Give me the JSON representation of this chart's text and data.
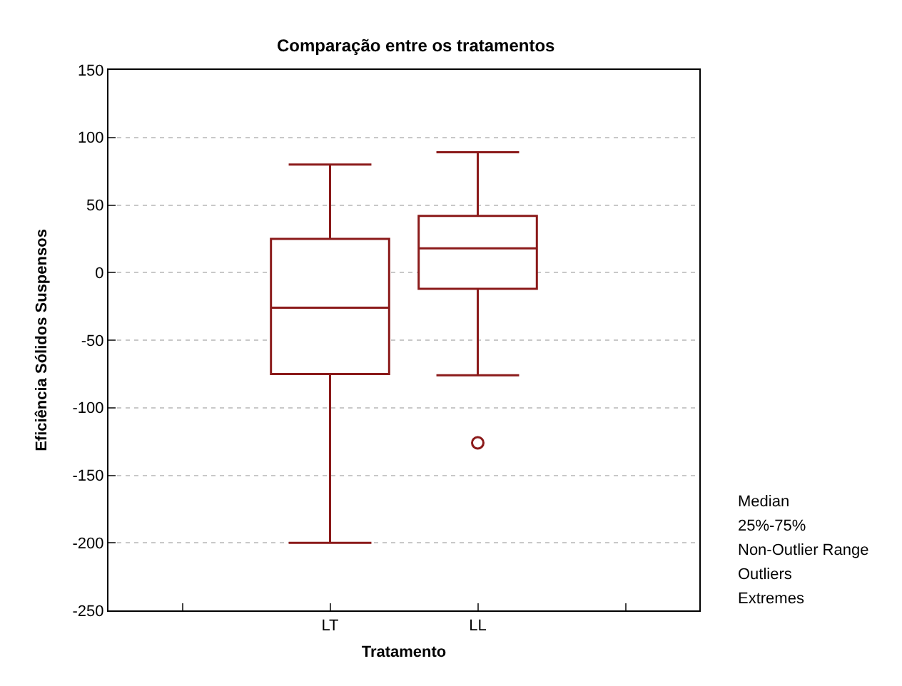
{
  "chart_data": {
    "type": "box",
    "title": "Comparação entre os tratamentos",
    "xlabel": "Tratamento",
    "ylabel": "Eficiência Sólidos Suspensos",
    "categories": [
      "LT",
      "LL"
    ],
    "boxes": [
      {
        "low": -200,
        "q1": -75,
        "median": -26,
        "q3": 25,
        "high": 80
      },
      {
        "low": -76,
        "q1": -12,
        "median": 18,
        "q3": 42,
        "high": 89,
        "outliers": [
          -126
        ]
      }
    ],
    "color": "#8b1a1a",
    "ylim": [
      -250,
      150
    ],
    "yticks": [
      -250,
      -200,
      -150,
      -100,
      -50,
      0,
      50,
      100,
      150
    ],
    "grid": "y",
    "annotations": [
      "Median",
      "25%-75%",
      "Non-Outlier Range",
      "Outliers",
      "Extremes"
    ]
  }
}
